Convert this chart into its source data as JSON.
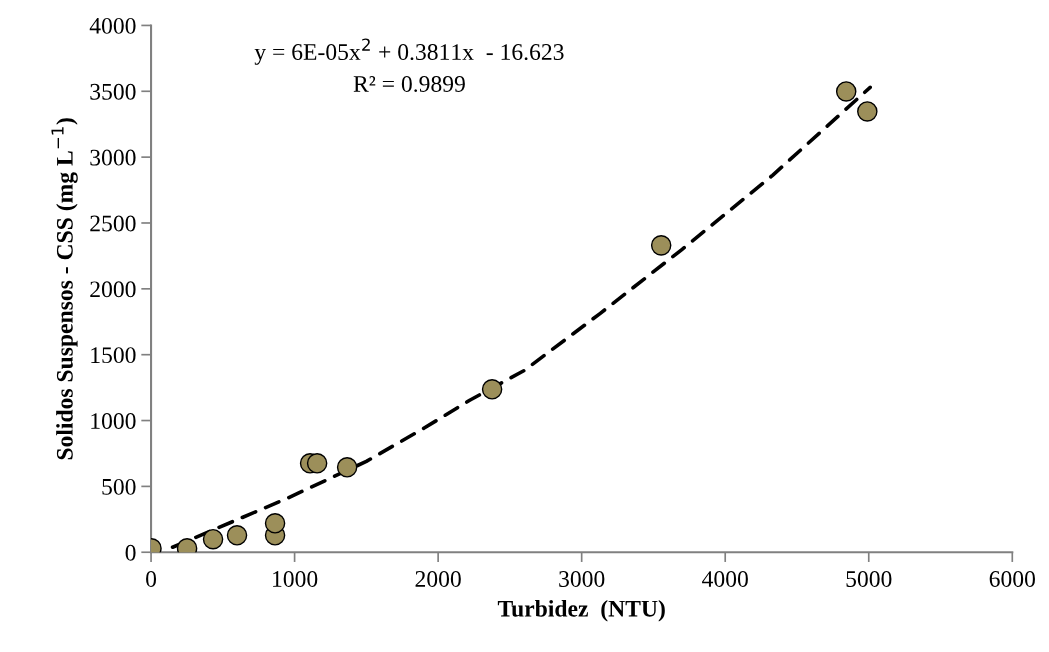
{
  "chart_data": {
    "type": "scatter",
    "xlabel": "Turbidez  (NTU)",
    "ylabel": "Solidos Suspensos - CSS (mg L$^{−1}$)",
    "xlim": [
      0,
      6000
    ],
    "ylim": [
      0,
      4000
    ],
    "xticks": [
      0,
      1000,
      2000,
      3000,
      4000,
      5000,
      6000
    ],
    "yticks": [
      0,
      500,
      1000,
      1500,
      2000,
      2500,
      3000,
      3500,
      4000
    ],
    "grid": false,
    "legend": false,
    "marker": "circle",
    "annotations": [
      "y = 6E-05x$^{2}$ + 0.3811x  - 16.623",
      "R² = 0.9899"
    ],
    "series": [
      {
        "color": "#9c8f5a",
        "x": [
          3,
          251,
          432,
          599,
          864,
          864,
          1108,
          1157,
          1366,
          2376,
          3554,
          4843,
          4990
        ],
        "values": [
          30,
          30,
          99,
          129,
          129,
          220,
          675,
          675,
          645,
          1237,
          2330,
          3499,
          3347
        ]
      },
      {
        "type": "line",
        "color": "#000000",
        "line_style": "dashed",
        "marker": "none",
        "x": [
          150,
          950,
          1500,
          1900,
          2220,
          2600,
          3130,
          3700,
          4330,
          5010
        ],
        "values": [
          38,
          410,
          690,
          941,
          1154,
          1380,
          1814,
          2300,
          2862,
          3530
        ]
      }
    ]
  }
}
